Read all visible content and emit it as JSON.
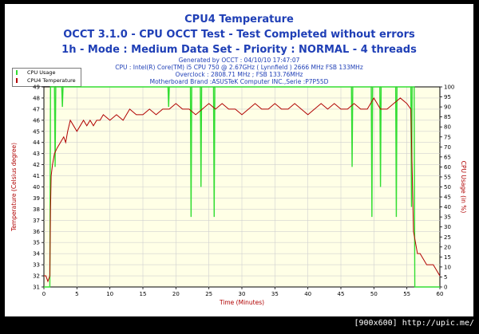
{
  "title_lines": [
    "CPU4 Temperature",
    "OCCT 3.1.0 - CPU OCCT Test - Test Completed without errors",
    "1h - Mode : Medium Data Set - Priority : NORMAL - 4 threads"
  ],
  "info_lines": [
    "Generated by OCCT : 04/10/10 17:47:07",
    "CPU : Intel(R) Core(TM) i5 CPU 750 @ 2.67GHz ( Lynnfield ) 2666 MHz FSB 133MHz",
    "Overclock : 2808.71 MHz ; FSB 133.76MHz",
    "Motherboard Brand :ASUSTeK Computer INC.,Serie :P7P55D"
  ],
  "footer": "[900x600] http://upic.me/",
  "colors": {
    "title": "#1f3fb6",
    "plot_bg": "#ffffe6",
    "grid": "#d0d0d0",
    "temperature": "#b00000",
    "cpu_usage": "#33dd33",
    "axis_left_label": "#b00000",
    "axis_right_label": "#b00000"
  },
  "chart_data": {
    "type": "line",
    "xlabel": "Time (Minutes)",
    "ylabel": "Temperature (Celsius degree)",
    "y2label": "CPU Usage (in %)",
    "xlim": [
      0,
      60
    ],
    "ylim": [
      31,
      49
    ],
    "y2lim": [
      0,
      100
    ],
    "x_ticks": [
      0,
      5,
      10,
      15,
      20,
      25,
      30,
      35,
      40,
      45,
      50,
      55,
      60
    ],
    "y_ticks": [
      31,
      32,
      33,
      34,
      35,
      36,
      37,
      38,
      39,
      40,
      41,
      42,
      43,
      44,
      45,
      46,
      47,
      48,
      49
    ],
    "y2_ticks": [
      0,
      5,
      10,
      15,
      20,
      25,
      30,
      35,
      40,
      45,
      50,
      55,
      60,
      65,
      70,
      75,
      80,
      85,
      90,
      95,
      100
    ],
    "grid": true,
    "legend_position": "top-left",
    "series": [
      {
        "name": "CPU Usage",
        "axis": "right",
        "x": [
          0,
          0.9,
          1.0,
          1.1,
          1.6,
          1.7,
          1.8,
          2.7,
          2.8,
          2.9,
          18.8,
          18.9,
          19.0,
          22.2,
          22.3,
          22.4,
          23.7,
          23.8,
          23.9,
          25.7,
          25.8,
          25.9,
          46.6,
          46.7,
          46.8,
          49.6,
          49.7,
          49.8,
          50.9,
          51.0,
          51.1,
          53.3,
          53.4,
          53.5,
          55.6,
          55.7,
          55.8,
          56.1,
          56.2,
          56.3,
          60
        ],
        "values": [
          0,
          0,
          100,
          100,
          100,
          60,
          100,
          100,
          90,
          100,
          100,
          90,
          100,
          100,
          35,
          100,
          100,
          50,
          100,
          100,
          35,
          100,
          100,
          60,
          100,
          100,
          35,
          100,
          100,
          50,
          100,
          100,
          35,
          100,
          100,
          40,
          100,
          100,
          0,
          0,
          0
        ]
      },
      {
        "name": "CPU4 Temperature",
        "axis": "left",
        "x": [
          0,
          0.3,
          0.6,
          0.9,
          1.0,
          1.1,
          1.3,
          1.6,
          2.0,
          2.5,
          3.0,
          3.3,
          3.6,
          4.0,
          4.5,
          5.0,
          5.5,
          6.0,
          6.5,
          7.0,
          7.5,
          8.0,
          8.5,
          9.0,
          10.0,
          11.0,
          12.0,
          13.0,
          14.0,
          15.0,
          16.0,
          17.0,
          18.0,
          19.0,
          20.0,
          21.0,
          22.0,
          23.0,
          24.0,
          25.0,
          26.0,
          27.0,
          28.0,
          29.0,
          30.0,
          31.0,
          32.0,
          33.0,
          34.0,
          35.0,
          36.0,
          37.0,
          38.0,
          39.0,
          40.0,
          41.0,
          42.0,
          43.0,
          44.0,
          45.0,
          46.0,
          47.0,
          48.0,
          49.0,
          50.0,
          51.0,
          52.0,
          53.0,
          54.0,
          55.0,
          55.6,
          56.0,
          56.3,
          56.6,
          57.0,
          57.5,
          58.0,
          58.5,
          59.0,
          59.5,
          60.0
        ],
        "values": [
          32,
          32,
          31.5,
          32,
          38,
          41,
          42,
          43,
          43.5,
          44,
          44.5,
          44,
          45,
          46,
          45.5,
          45,
          45.5,
          46,
          45.5,
          46,
          45.5,
          46,
          46,
          46.5,
          46,
          46.5,
          46,
          47,
          46.5,
          46.5,
          47,
          46.5,
          47,
          47,
          47.5,
          47,
          47,
          46.5,
          47,
          47.5,
          47,
          47.5,
          47,
          47,
          46.5,
          47,
          47.5,
          47,
          47,
          47.5,
          47,
          47,
          47.5,
          47,
          46.5,
          47,
          47.5,
          47,
          47.5,
          47,
          47,
          47.5,
          47,
          47,
          48,
          47,
          47,
          47.5,
          48,
          47.5,
          47,
          36,
          35,
          34,
          34,
          33.5,
          33,
          33,
          33,
          32.5,
          32
        ]
      }
    ]
  }
}
